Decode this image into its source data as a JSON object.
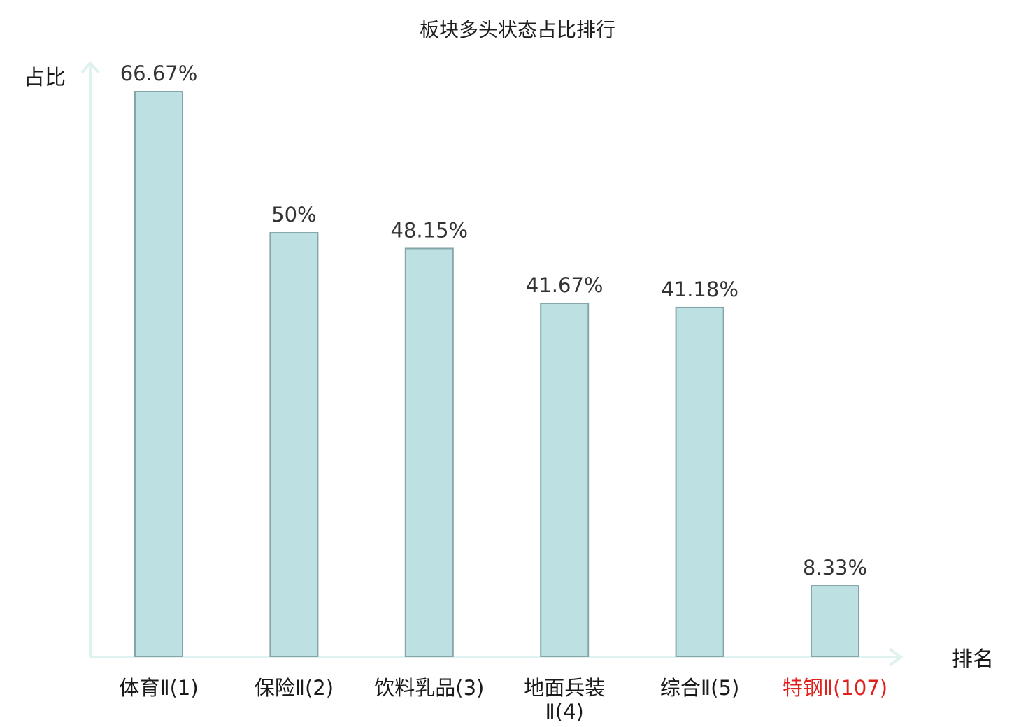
{
  "chart_data": {
    "type": "bar",
    "title": "板块多头状态占比排行",
    "ylabel": "占比",
    "xlabel": "排名",
    "categories": [
      [
        "体育Ⅱ(1)"
      ],
      [
        "保险Ⅱ(2)"
      ],
      [
        "饮料乳品(3)"
      ],
      [
        "地面兵装",
        "Ⅱ(4)"
      ],
      [
        "综合Ⅱ(5)"
      ],
      [
        "特钢Ⅱ(107)"
      ]
    ],
    "values": [
      66.67,
      50,
      48.15,
      41.67,
      41.18,
      8.33
    ],
    "value_labels": [
      "66.67%",
      "50%",
      "48.15%",
      "41.67%",
      "41.18%",
      "8.33%"
    ],
    "highlight_index": 5,
    "ylim": [
      0,
      66.67
    ],
    "grid": false,
    "legend": "none"
  },
  "colors": {
    "bar_fill": "#bde0e2",
    "bar_stroke": "#86a5a8",
    "axis": "#e0f2ef",
    "label_default": "#1a1a1a",
    "label_highlight": "#e0201b",
    "value_text": "#333333"
  }
}
